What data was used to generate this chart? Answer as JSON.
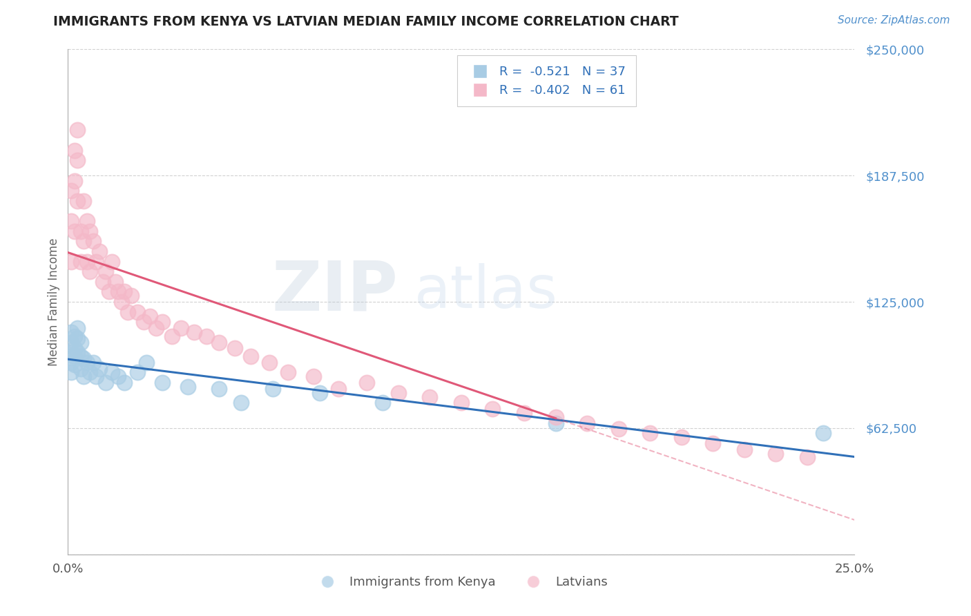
{
  "title": "IMMIGRANTS FROM KENYA VS LATVIAN MEDIAN FAMILY INCOME CORRELATION CHART",
  "source": "Source: ZipAtlas.com",
  "ylabel": "Median Family Income",
  "yticks": [
    0,
    62500,
    125000,
    187500,
    250000
  ],
  "ytick_labels": [
    "",
    "$62,500",
    "$125,000",
    "$187,500",
    "$250,000"
  ],
  "xlim": [
    0.0,
    0.25
  ],
  "ylim": [
    0,
    250000
  ],
  "legend_r1": "R =  -0.521   N = 37",
  "legend_r2": "R =  -0.402   N = 61",
  "blue_color": "#a8cce4",
  "pink_color": "#f4b8c8",
  "blue_line_color": "#3070b8",
  "pink_line_color": "#e05878",
  "bg_color": "#ffffff",
  "grid_color": "#cccccc",
  "title_color": "#222222",
  "axis_label_color": "#666666",
  "ytick_color": "#5090cc",
  "xtick_color": "#555555",
  "watermark_zip_color": "#c8d8e8",
  "watermark_atlas_color": "#b8cce0",
  "kenya_x": [
    0.001,
    0.001,
    0.001,
    0.001,
    0.001,
    0.002,
    0.002,
    0.002,
    0.002,
    0.003,
    0.003,
    0.003,
    0.004,
    0.004,
    0.004,
    0.005,
    0.005,
    0.006,
    0.007,
    0.008,
    0.009,
    0.01,
    0.012,
    0.014,
    0.016,
    0.018,
    0.022,
    0.025,
    0.03,
    0.038,
    0.048,
    0.055,
    0.065,
    0.08,
    0.1,
    0.155,
    0.24
  ],
  "kenya_y": [
    110000,
    105000,
    100000,
    95000,
    90000,
    108000,
    102000,
    98000,
    94000,
    112000,
    107000,
    100000,
    105000,
    98000,
    92000,
    97000,
    88000,
    95000,
    90000,
    95000,
    88000,
    92000,
    85000,
    90000,
    88000,
    85000,
    90000,
    95000,
    85000,
    83000,
    82000,
    75000,
    82000,
    80000,
    75000,
    65000,
    60000
  ],
  "latvian_x": [
    0.001,
    0.001,
    0.001,
    0.002,
    0.002,
    0.002,
    0.003,
    0.003,
    0.003,
    0.004,
    0.004,
    0.005,
    0.005,
    0.006,
    0.006,
    0.007,
    0.007,
    0.008,
    0.009,
    0.01,
    0.011,
    0.012,
    0.013,
    0.014,
    0.015,
    0.016,
    0.017,
    0.018,
    0.019,
    0.02,
    0.022,
    0.024,
    0.026,
    0.028,
    0.03,
    0.033,
    0.036,
    0.04,
    0.044,
    0.048,
    0.053,
    0.058,
    0.064,
    0.07,
    0.078,
    0.086,
    0.095,
    0.105,
    0.115,
    0.125,
    0.135,
    0.145,
    0.155,
    0.165,
    0.175,
    0.185,
    0.195,
    0.205,
    0.215,
    0.225,
    0.235
  ],
  "latvian_y": [
    165000,
    180000,
    145000,
    200000,
    185000,
    160000,
    195000,
    210000,
    175000,
    160000,
    145000,
    175000,
    155000,
    165000,
    145000,
    160000,
    140000,
    155000,
    145000,
    150000,
    135000,
    140000,
    130000,
    145000,
    135000,
    130000,
    125000,
    130000,
    120000,
    128000,
    120000,
    115000,
    118000,
    112000,
    115000,
    108000,
    112000,
    110000,
    108000,
    105000,
    102000,
    98000,
    95000,
    90000,
    88000,
    82000,
    85000,
    80000,
    78000,
    75000,
    72000,
    70000,
    68000,
    65000,
    62000,
    60000,
    58000,
    55000,
    52000,
    50000,
    48000
  ]
}
